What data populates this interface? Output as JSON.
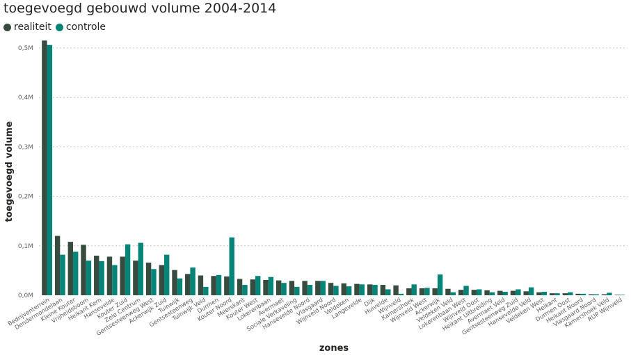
{
  "chart_data": {
    "type": "bar",
    "title": "toegevoegd gebouwd volume 2004-2014",
    "xlabel": "zones",
    "ylabel": "toegevoegd volume",
    "ylim": [
      0,
      0.5
    ],
    "y_unit": "M",
    "y_ticks": [
      "0,0M",
      "0,1M",
      "0,2M",
      "0,3M",
      "0,4M",
      "0,5M"
    ],
    "grid": true,
    "legend_position": "top-left",
    "categories": [
      "Bedrijventerrein",
      "Dendermondelaan",
      "Kleine Kouter",
      "Vrijheidsboom",
      "Heikant Kern",
      "Hansevelde",
      "Kouter Zuid",
      "Zele Centrum",
      "Gentsesteenweg West",
      "Ackerwijk Zuid",
      "Tuinwijk",
      "Gentsesteenweg",
      "Tuinwijk Veld",
      "Durmen",
      "Kouter Noord",
      "Meerskant",
      "Kouter West",
      "Lokerenbaan",
      "Avermaet",
      "Sociale Verkaveling",
      "Hansevelde Noord",
      "Vlasgaard",
      "Wijnveld Noord",
      "Veldeken",
      "Langevelde",
      "Dijk",
      "Huivelde",
      "Wijnveld",
      "Kamershoek",
      "Wijnveld West",
      "Ackerwijk",
      "Veldeken Veld",
      "Lokerenbaan West",
      "Wijnveld Oost",
      "Heikant Uitbreiding",
      "Avermaet Veld",
      "Gentsesteenweg Zuid",
      "Hansevelde Veld",
      "Veldeken West",
      "Heikant",
      "Durmen Oost",
      "Heikant Noord",
      "Vlasgaard Noord",
      "Kamershoek Veld",
      "RUP Wijnveld"
    ],
    "series": [
      {
        "name": "realiteit",
        "color": "#374b3e",
        "values": [
          0.515,
          0.12,
          0.108,
          0.102,
          0.08,
          0.078,
          0.078,
          0.07,
          0.066,
          0.061,
          0.051,
          0.043,
          0.04,
          0.039,
          0.038,
          0.033,
          0.032,
          0.031,
          0.03,
          0.029,
          0.029,
          0.029,
          0.025,
          0.024,
          0.023,
          0.022,
          0.021,
          0.02,
          0.014,
          0.014,
          0.014,
          0.013,
          0.011,
          0.011,
          0.01,
          0.009,
          0.009,
          0.008,
          0.006,
          0.004,
          0.004,
          0.003,
          0.002,
          0.002,
          0.001
        ]
      },
      {
        "name": "controle",
        "color": "#078478",
        "values": [
          0.506,
          0.082,
          0.088,
          0.07,
          0.069,
          0.061,
          0.103,
          0.106,
          0.053,
          0.082,
          0.034,
          0.056,
          0.017,
          0.041,
          0.117,
          0.021,
          0.039,
          0.037,
          0.025,
          0.017,
          0.021,
          0.029,
          0.019,
          0.018,
          0.022,
          0.021,
          0.012,
          0.003,
          0.022,
          0.015,
          0.042,
          0.006,
          0.019,
          0.012,
          0.006,
          0.007,
          0.012,
          0.016,
          0.007,
          0.004,
          0.006,
          0.003,
          0.002,
          0.005,
          0.001
        ]
      }
    ]
  }
}
